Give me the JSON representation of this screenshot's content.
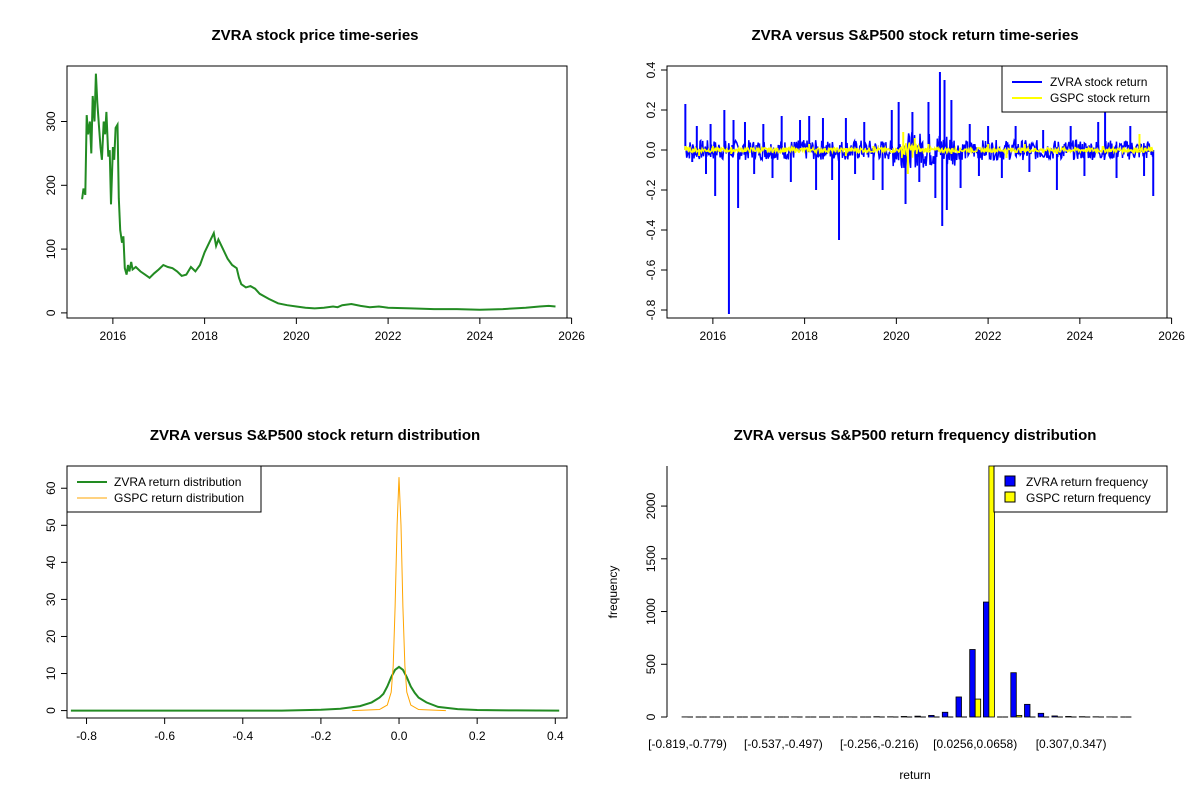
{
  "chart_data": [
    {
      "type": "line",
      "title": "ZVRA stock price time-series",
      "xlabel": "",
      "ylabel": "",
      "xlim": [
        2015.0,
        2025.9
      ],
      "ylim": [
        -8,
        387
      ],
      "x_ticks": [
        2016,
        2018,
        2020,
        2022,
        2024,
        2026
      ],
      "y_ticks": [
        0,
        100,
        200,
        300
      ],
      "grid": false,
      "series": [
        {
          "color": "#228B22",
          "x": [
            2015.33,
            2015.36,
            2015.4,
            2015.43,
            2015.46,
            2015.5,
            2015.53,
            2015.56,
            2015.6,
            2015.63,
            2015.66,
            2015.7,
            2015.73,
            2015.76,
            2015.8,
            2015.83,
            2015.86,
            2015.9,
            2015.93,
            2015.96,
            2016.0,
            2016.03,
            2016.06,
            2016.1,
            2016.13,
            2016.16,
            2016.2,
            2016.23,
            2016.26,
            2016.3,
            2016.33,
            2016.36,
            2016.4,
            2016.43,
            2016.5,
            2016.6,
            2016.7,
            2016.8,
            2016.9,
            2017.0,
            2017.1,
            2017.2,
            2017.3,
            2017.4,
            2017.5,
            2017.6,
            2017.7,
            2017.8,
            2017.9,
            2018.0,
            2018.1,
            2018.2,
            2018.25,
            2018.3,
            2018.4,
            2018.5,
            2018.6,
            2018.7,
            2018.75,
            2018.8,
            2018.9,
            2019.0,
            2019.1,
            2019.2,
            2019.4,
            2019.6,
            2019.8,
            2020.0,
            2020.2,
            2020.4,
            2020.6,
            2020.8,
            2020.9,
            2021.0,
            2021.2,
            2021.4,
            2021.6,
            2021.8,
            2022.0,
            2022.5,
            2023.0,
            2023.5,
            2024.0,
            2024.5,
            2025.0,
            2025.3,
            2025.5,
            2025.65
          ],
          "y": [
            178,
            195,
            185,
            310,
            280,
            300,
            250,
            340,
            300,
            375,
            330,
            290,
            260,
            240,
            300,
            280,
            315,
            245,
            255,
            170,
            260,
            240,
            290,
            295,
            180,
            130,
            110,
            120,
            70,
            60,
            75,
            65,
            80,
            68,
            72,
            65,
            60,
            55,
            62,
            68,
            75,
            72,
            70,
            65,
            58,
            60,
            72,
            65,
            75,
            95,
            110,
            125,
            105,
            115,
            100,
            85,
            75,
            70,
            55,
            45,
            40,
            42,
            38,
            30,
            22,
            15,
            12,
            10,
            8,
            7,
            8,
            10,
            9,
            12,
            14,
            11,
            9,
            10,
            8,
            7,
            6,
            6,
            5,
            6,
            8,
            10,
            11,
            10
          ]
        }
      ]
    },
    {
      "type": "line",
      "title": "ZVRA versus S&P500 stock return time-series",
      "xlabel": "",
      "ylabel": "",
      "xlim": [
        2015.0,
        2025.9
      ],
      "ylim": [
        -0.84,
        0.42
      ],
      "x_ticks": [
        2016,
        2018,
        2020,
        2022,
        2024,
        2026
      ],
      "y_ticks": [
        -0.8,
        -0.6,
        -0.4,
        -0.2,
        0.0,
        0.2,
        0.4
      ],
      "y_tick_labels": [
        "-0.8",
        "-0.6",
        "-0.4",
        "-0.2",
        "0.0",
        "0.2",
        "0.4"
      ],
      "legend": {
        "position": "top-right",
        "entries": [
          "ZVRA stock return",
          "GSPC stock return"
        ]
      },
      "spikes": {
        "ZVRA": {
          "x": [
            2015.4,
            2015.55,
            2015.65,
            2015.85,
            2015.95,
            2016.05,
            2016.25,
            2016.35,
            2016.45,
            2016.55,
            2016.7,
            2016.9,
            2017.1,
            2017.3,
            2017.5,
            2017.7,
            2017.9,
            2018.1,
            2018.25,
            2018.4,
            2018.6,
            2018.75,
            2018.9,
            2019.1,
            2019.3,
            2019.5,
            2019.7,
            2019.9,
            2020.05,
            2020.2,
            2020.35,
            2020.5,
            2020.7,
            2020.85,
            2020.95,
            2021.0,
            2021.05,
            2021.1,
            2021.2,
            2021.4,
            2021.6,
            2021.8,
            2022.0,
            2022.3,
            2022.6,
            2022.9,
            2023.2,
            2023.5,
            2023.8,
            2024.1,
            2024.4,
            2024.55,
            2024.8,
            2025.1,
            2025.4,
            2025.6
          ],
          "y": [
            0.23,
            -0.06,
            0.12,
            -0.12,
            0.13,
            -0.23,
            0.2,
            -0.82,
            0.15,
            -0.29,
            0.14,
            -0.12,
            0.13,
            -0.14,
            0.17,
            -0.16,
            0.15,
            0.17,
            -0.2,
            0.16,
            -0.15,
            -0.45,
            0.16,
            -0.12,
            0.14,
            -0.15,
            -0.2,
            0.2,
            0.24,
            -0.27,
            0.19,
            -0.16,
            0.24,
            -0.24,
            0.39,
            -0.38,
            0.35,
            -0.3,
            0.25,
            -0.19,
            0.13,
            -0.13,
            0.12,
            -0.14,
            0.12,
            -0.11,
            0.1,
            -0.2,
            0.12,
            -0.13,
            0.14,
            0.2,
            -0.14,
            0.12,
            -0.13,
            -0.23
          ]
        },
        "GSPC": {
          "x": [
            2015.4,
            2015.7,
            2016.0,
            2016.4,
            2017.0,
            2017.6,
            2018.1,
            2018.9,
            2019.5,
            2020.15,
            2020.25,
            2020.4,
            2020.7,
            2021.2,
            2022.0,
            2022.4,
            2022.8,
            2023.5,
            2024.5,
            2025.3
          ],
          "y": [
            0.02,
            -0.03,
            0.02,
            -0.02,
            0.01,
            -0.01,
            0.03,
            -0.03,
            0.02,
            0.09,
            -0.12,
            0.06,
            0.03,
            -0.02,
            0.03,
            -0.04,
            0.03,
            -0.02,
            0.02,
            0.08
          ]
        }
      },
      "series": [
        {
          "name": "ZVRA stock return",
          "color": "#0000FF"
        },
        {
          "name": "GSPC stock return",
          "color": "#FFFF00"
        }
      ]
    },
    {
      "type": "line",
      "title": "ZVRA versus S&P500 stock return distribution",
      "xlabel": "",
      "ylabel": "",
      "xlim": [
        -0.85,
        0.43
      ],
      "ylim": [
        -2,
        66
      ],
      "x_ticks": [
        -0.8,
        -0.6,
        -0.4,
        -0.2,
        0.0,
        0.2,
        0.4
      ],
      "x_tick_labels": [
        "-0.8",
        "-0.6",
        "-0.4",
        "-0.2",
        "0.0",
        "0.2",
        "0.4"
      ],
      "y_ticks": [
        0,
        10,
        20,
        30,
        40,
        50,
        60
      ],
      "legend": {
        "position": "top-left",
        "entries": [
          "ZVRA return distribution",
          "GSPC return distribution"
        ]
      },
      "series": [
        {
          "name": "ZVRA return distribution",
          "color": "#228B22",
          "x": [
            -0.84,
            -0.3,
            -0.2,
            -0.15,
            -0.1,
            -0.07,
            -0.05,
            -0.04,
            -0.03,
            -0.02,
            -0.01,
            0.0,
            0.01,
            0.02,
            0.03,
            0.04,
            0.05,
            0.07,
            0.1,
            0.15,
            0.2,
            0.25,
            0.3,
            0.41
          ],
          "y": [
            0,
            0,
            0.2,
            0.5,
            1.2,
            2.2,
            3.5,
            4.5,
            6.5,
            9,
            11,
            11.8,
            11,
            9,
            6.5,
            4.8,
            3.5,
            2.2,
            1.0,
            0.4,
            0.15,
            0.1,
            0.05,
            0
          ]
        },
        {
          "name": "GSPC return distribution",
          "color": "#FFA500",
          "x": [
            -0.12,
            -0.05,
            -0.03,
            -0.02,
            -0.015,
            -0.01,
            -0.005,
            0.0,
            0.005,
            0.01,
            0.015,
            0.02,
            0.03,
            0.05,
            0.12
          ],
          "y": [
            0,
            0.3,
            1.5,
            5,
            12,
            28,
            50,
            63,
            50,
            28,
            12,
            5,
            1.5,
            0.3,
            0
          ]
        }
      ]
    },
    {
      "type": "bar",
      "title": "ZVRA versus S&P500 return frequency distribution",
      "xlabel": "return",
      "ylabel": "frequency",
      "ylim": [
        -50,
        2380
      ],
      "y_ticks": [
        0,
        500,
        1000,
        1500,
        2000
      ],
      "category_labels_shown": [
        "[-0.819,-0.779)",
        "[-0.537,-0.497)",
        "[-0.256,-0.216)",
        "[0.0256,0.0658)",
        "[0.307,0.347)"
      ],
      "category_label_positions": [
        0,
        7,
        14,
        21,
        28
      ],
      "legend": {
        "position": "top-right",
        "entries": [
          "ZVRA return frequency",
          "GSPC return frequency"
        ]
      },
      "series": [
        {
          "name": "ZVRA return frequency",
          "color": "#0000FF",
          "values": [
            1,
            0,
            0,
            0,
            0,
            0,
            0,
            0,
            1,
            0,
            0,
            0,
            1,
            0,
            3,
            2,
            5,
            8,
            15,
            45,
            190,
            640,
            1090,
            0,
            420,
            120,
            35,
            10,
            5,
            3,
            2,
            1,
            0
          ]
        },
        {
          "name": "GSPC return frequency",
          "color": "#FFFF00",
          "values": [
            0,
            0,
            0,
            0,
            0,
            0,
            0,
            0,
            0,
            0,
            0,
            0,
            0,
            0,
            0,
            0,
            0,
            0,
            0,
            0,
            0,
            170,
            2450,
            0,
            15,
            0,
            0,
            0,
            0,
            0,
            0,
            0,
            0
          ]
        }
      ]
    }
  ]
}
